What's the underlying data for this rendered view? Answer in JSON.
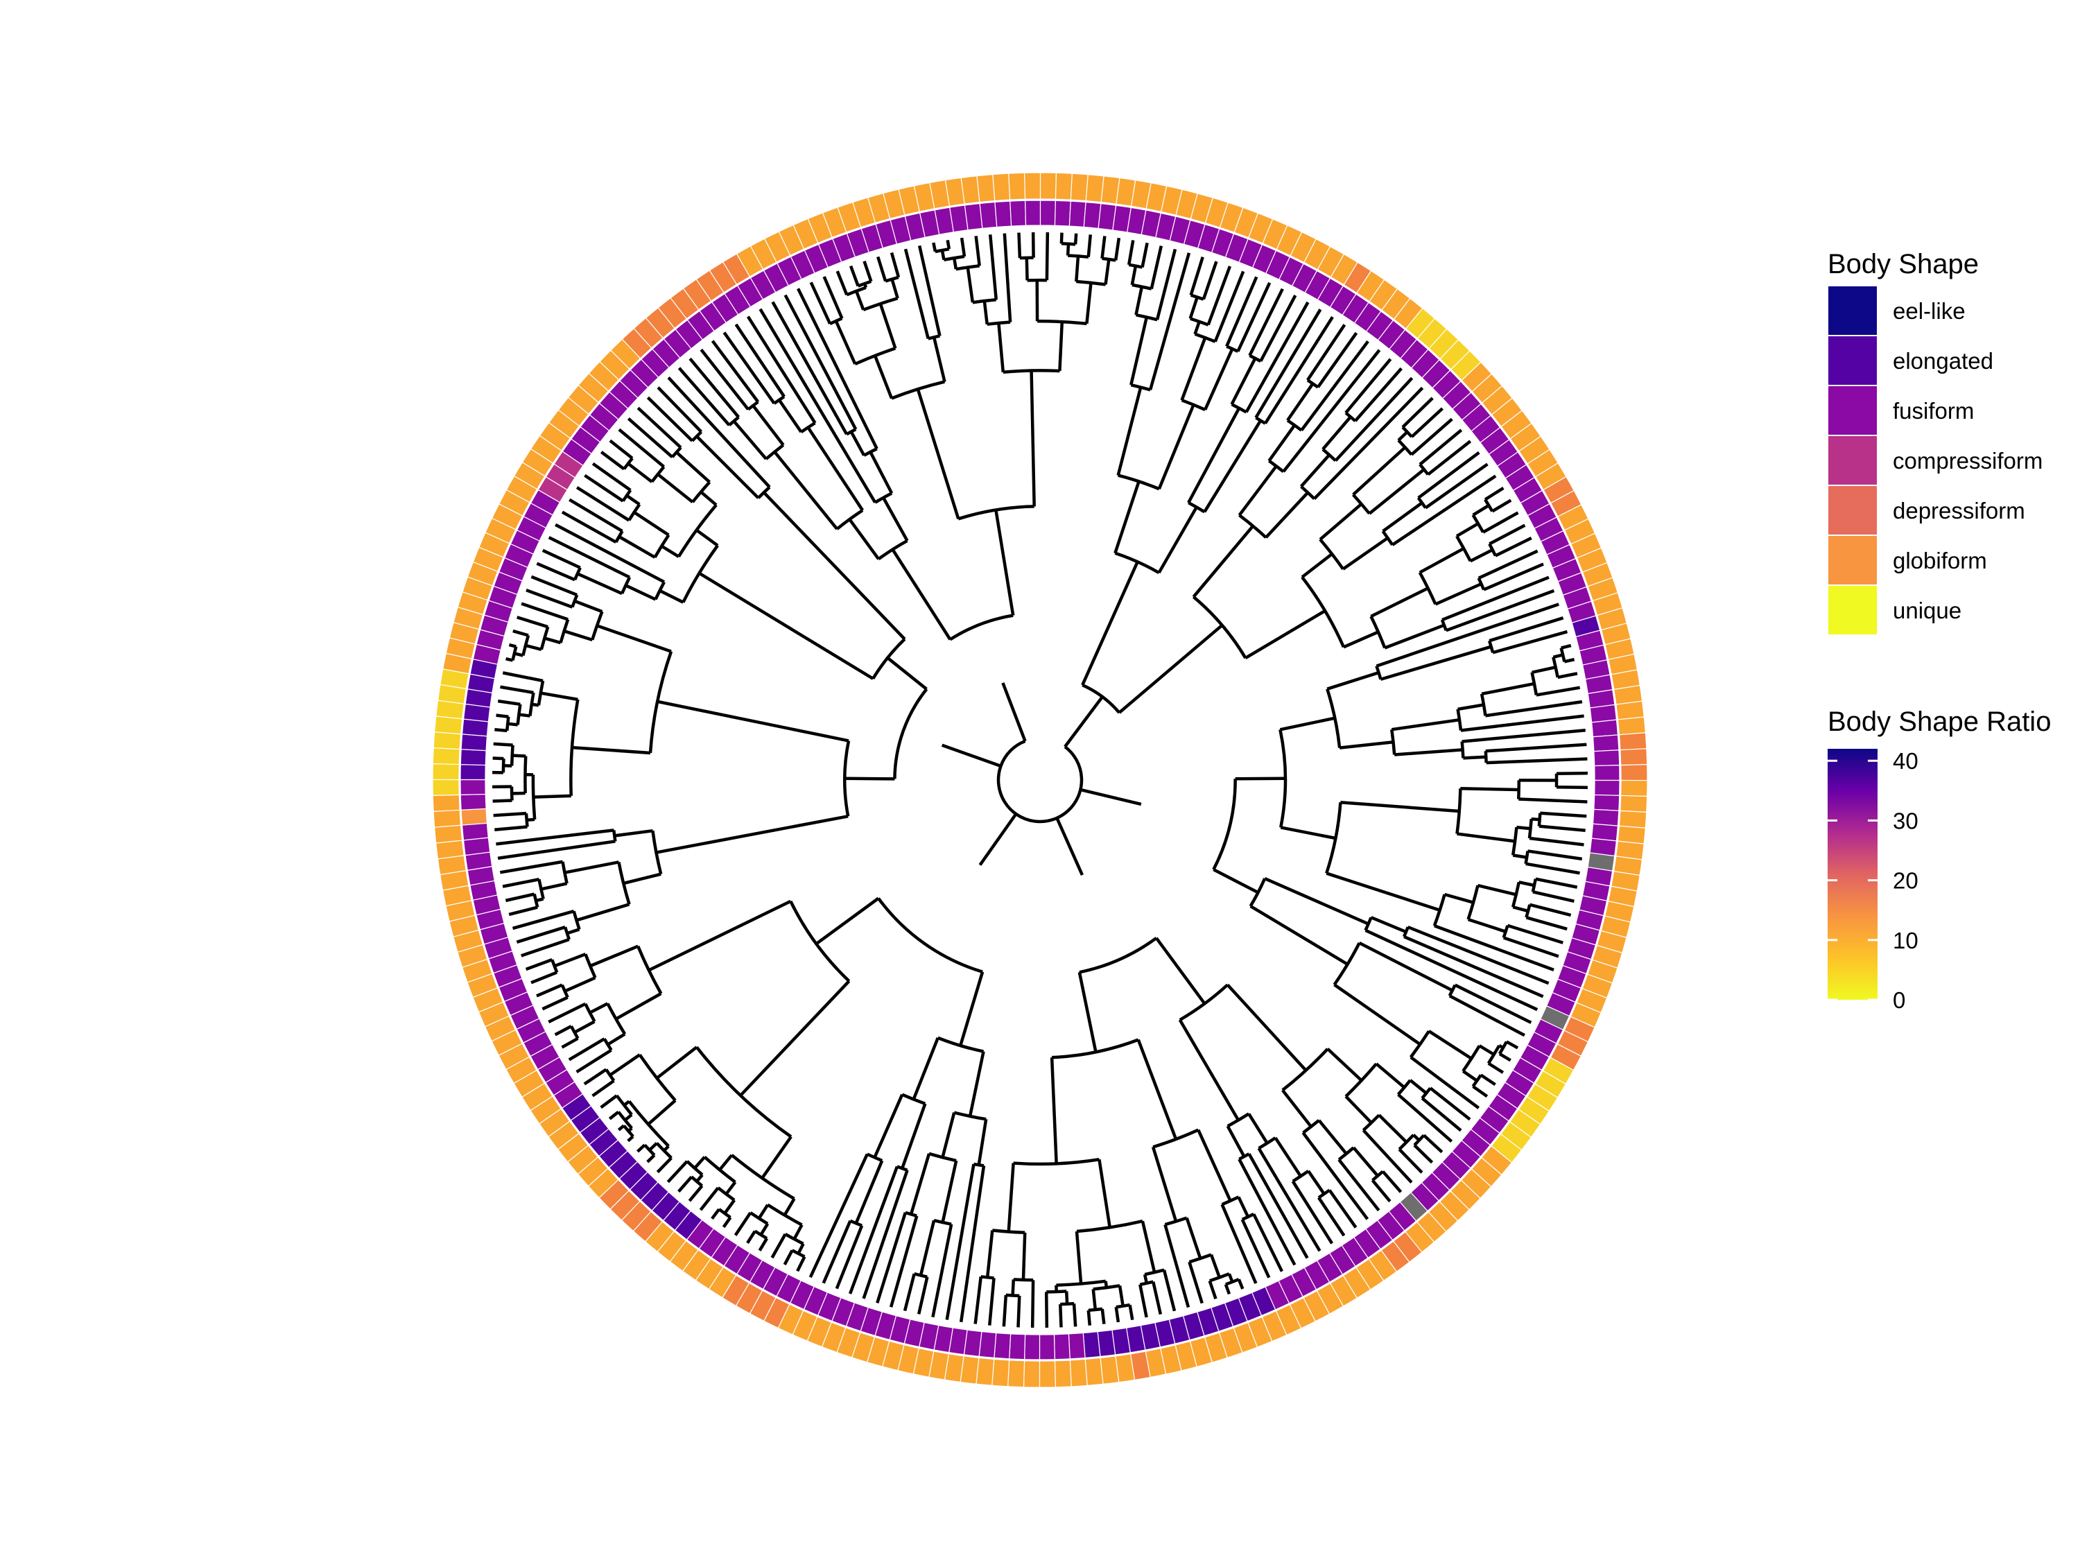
{
  "legend_shape": {
    "title": "Body Shape",
    "items": [
      {
        "label": "eel-like",
        "color": "#0d0887"
      },
      {
        "label": "elongated",
        "color": "#5402a3"
      },
      {
        "label": "fusiform",
        "color": "#8b0aa5"
      },
      {
        "label": "compressiform",
        "color": "#b93289"
      },
      {
        "label": "depressiform",
        "color": "#e66c5c"
      },
      {
        "label": "globiform",
        "color": "#f89540"
      },
      {
        "label": "unique",
        "color": "#f0f921"
      }
    ]
  },
  "legend_ratio": {
    "title": "Body Shape Ratio",
    "ticks": [
      "0",
      "10",
      "20",
      "30",
      "40"
    ],
    "range": [
      0,
      42
    ],
    "stops": [
      "#f0f921",
      "#fdc328",
      "#f89441",
      "#e16462",
      "#b12a90",
      "#6a00a8",
      "#0d0887"
    ]
  },
  "chart_data": {
    "type": "circular-phylogeny-heatmap",
    "tip_count": 240,
    "na_color": "#6e6e6e",
    "shape_ring": "pppppppppppppppppppppppppppppppppppppppppppeppppppppppppppp.pppppppppp.ppppppppppppppp.pppppppppppeeeeeeeeeeeeeppppppppppppppppppppppppppppeeeeeeeeeeeeppppppppppppppppppppgppeeeeeeeeppppppppppppcccppppppppppppppppppppppppppppppppppp",
    "ratio_ring": "gggggggggggggggoggggyyyyygggggggggoogggggggggggggggoooggggggggggggggggoooyyyyyyyggggggggoogggggggggggggggggogggggggggggggggggggggggooooggggggooooggggggggggggggggggggggggggggyyyyyyyyggggggggggggggggggggggggoooooooooggggggggggggg"
  }
}
